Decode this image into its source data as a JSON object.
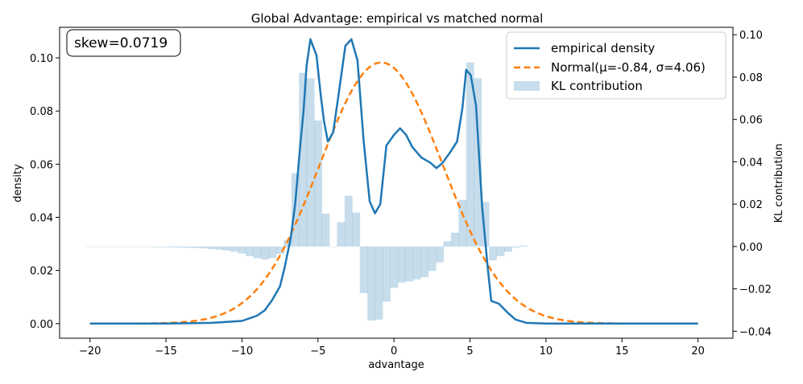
{
  "chart_data": {
    "type": "line",
    "title": "Global Advantage: empirical vs matched normal",
    "xlabel": "advantage",
    "ylabel": "density",
    "y2label": "KL contribution",
    "xlim": [
      -22,
      22.3
    ],
    "ylim": [
      -0.0055,
      0.1115
    ],
    "y2lim": [
      -0.0433,
      0.1035
    ],
    "xticks": [
      -20,
      -15,
      -10,
      -5,
      0,
      5,
      10,
      15,
      20
    ],
    "xtick_labels": [
      "−20",
      "−15",
      "−10",
      "−5",
      "0",
      "5",
      "10",
      "15",
      "20"
    ],
    "yticks": [
      0.0,
      0.02,
      0.04,
      0.06,
      0.08,
      0.1
    ],
    "ytick_labels": [
      "0.00",
      "0.02",
      "0.04",
      "0.06",
      "0.08",
      "0.10"
    ],
    "y2ticks": [
      -0.04,
      -0.02,
      0.0,
      0.02,
      0.04,
      0.06,
      0.08,
      0.1
    ],
    "y2tick_labels": [
      "−0.04",
      "−0.02",
      "0.00",
      "0.02",
      "0.04",
      "0.06",
      "0.08",
      "0.10"
    ],
    "annotation": "skew=0.0719",
    "legend": {
      "position": "upper right",
      "entries": [
        "empirical density",
        "Normal(μ=-0.84, σ=4.06)",
        "KL contribution"
      ]
    },
    "colors": {
      "empirical": "#1f77b4",
      "normal": "#ff7f0e",
      "kl": "#1f77b4"
    },
    "series": [
      {
        "name": "empirical density",
        "axis": "left",
        "style": "solid",
        "points": [
          [
            -20,
            0.0
          ],
          [
            -15,
            0.0
          ],
          [
            -12,
            0.0003
          ],
          [
            -10,
            0.001
          ],
          [
            -9.5,
            0.002
          ],
          [
            -9,
            0.003
          ],
          [
            -8.5,
            0.005
          ],
          [
            -8,
            0.009
          ],
          [
            -7.5,
            0.014
          ],
          [
            -7.2,
            0.021
          ],
          [
            -6.8,
            0.032
          ],
          [
            -6.5,
            0.045
          ],
          [
            -6.2,
            0.065
          ],
          [
            -5.95,
            0.08
          ],
          [
            -5.75,
            0.097
          ],
          [
            -5.5,
            0.107
          ],
          [
            -5.1,
            0.101
          ],
          [
            -4.8,
            0.085
          ],
          [
            -4.6,
            0.076
          ],
          [
            -4.35,
            0.0685
          ],
          [
            -4.0,
            0.072
          ],
          [
            -3.6,
            0.088
          ],
          [
            -3.2,
            0.1045
          ],
          [
            -2.8,
            0.107
          ],
          [
            -2.4,
            0.099
          ],
          [
            -2.0,
            0.069
          ],
          [
            -1.6,
            0.046
          ],
          [
            -1.25,
            0.0415
          ],
          [
            -0.9,
            0.045
          ],
          [
            -0.5,
            0.067
          ],
          [
            0.0,
            0.071
          ],
          [
            0.4,
            0.0735
          ],
          [
            0.8,
            0.071
          ],
          [
            1.2,
            0.0665
          ],
          [
            1.8,
            0.0625
          ],
          [
            2.4,
            0.0605
          ],
          [
            2.8,
            0.0585
          ],
          [
            3.2,
            0.0605
          ],
          [
            3.7,
            0.0645
          ],
          [
            4.15,
            0.0685
          ],
          [
            4.5,
            0.081
          ],
          [
            4.75,
            0.0955
          ],
          [
            5.05,
            0.0935
          ],
          [
            5.4,
            0.082
          ],
          [
            5.8,
            0.044
          ],
          [
            6.15,
            0.022
          ],
          [
            6.4,
            0.0085
          ],
          [
            6.9,
            0.0075
          ],
          [
            7.5,
            0.004
          ],
          [
            8.0,
            0.0015
          ],
          [
            8.7,
            0.0003
          ],
          [
            10,
            0.0
          ],
          [
            15,
            0.0
          ],
          [
            20,
            0.0
          ]
        ]
      },
      {
        "name": "Normal(μ=-0.84, σ=4.06)",
        "axis": "left",
        "style": "dashed",
        "mu": -0.84,
        "sigma": 4.06,
        "x_range": [
          -20,
          20
        ]
      },
      {
        "name": "KL contribution",
        "axis": "right",
        "type": "bar",
        "x": [
          -20.0,
          -19.5,
          -19.0,
          -18.5,
          -18.0,
          -17.5,
          -17.0,
          -16.5,
          -16.0,
          -15.5,
          -15.0,
          -14.5,
          -14.0,
          -13.5,
          -13.0,
          -12.5,
          -12.0,
          -11.5,
          -11.0,
          -10.5,
          -10.0,
          -9.5,
          -9.0,
          -8.5,
          -8.0,
          -7.5,
          -7.0,
          -6.5,
          -6.0,
          -5.5,
          -5.0,
          -4.5,
          -4.0,
          -3.5,
          -3.0,
          -2.5,
          -2.0,
          -1.5,
          -1.0,
          -0.5,
          0.0,
          0.5,
          1.0,
          1.5,
          2.0,
          2.5,
          3.0,
          3.5,
          4.0,
          4.5,
          5.0,
          5.5,
          6.0,
          6.5,
          7.0,
          7.5,
          8.0,
          8.5
        ],
        "values": [
          -0.0001,
          -0.0001,
          -0.0001,
          -0.0001,
          -0.0001,
          -0.0001,
          -0.0002,
          -0.0002,
          -0.0002,
          -0.0003,
          -0.0003,
          -0.0004,
          -0.0005,
          -0.0006,
          -0.0007,
          -0.0009,
          -0.0012,
          -0.0015,
          -0.0019,
          -0.0025,
          -0.0033,
          -0.0045,
          -0.0055,
          -0.0062,
          -0.0055,
          -0.0035,
          0.003,
          0.0345,
          0.082,
          0.0795,
          0.0595,
          0.0155,
          0.0,
          0.0115,
          0.024,
          0.016,
          -0.022,
          -0.035,
          -0.0345,
          -0.026,
          -0.0195,
          -0.017,
          -0.0165,
          -0.0155,
          -0.0145,
          -0.0115,
          -0.0075,
          0.0025,
          0.0065,
          0.022,
          0.087,
          0.0795,
          0.021,
          -0.0065,
          -0.0045,
          -0.0025,
          -0.0005,
          0.0005
        ]
      }
    ]
  }
}
